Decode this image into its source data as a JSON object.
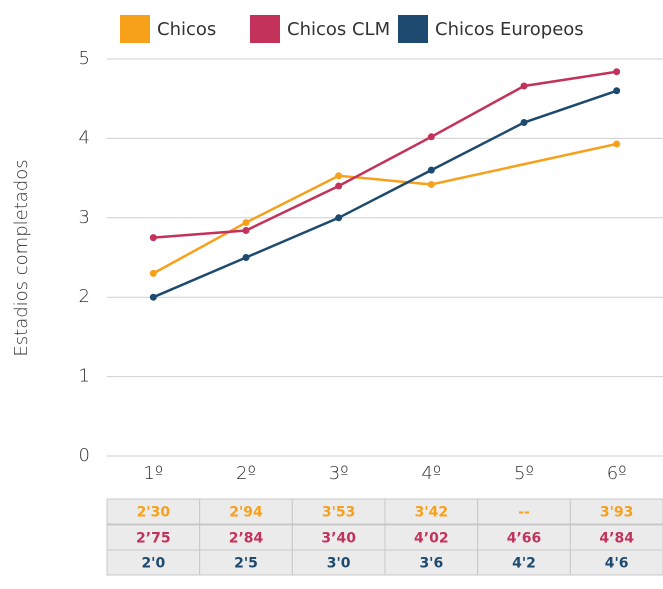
{
  "chart_data": {
    "type": "line",
    "y_label": "Estadios completados",
    "categories": [
      "1º",
      "2º",
      "3º",
      "4º",
      "5º",
      "6º"
    ],
    "series": [
      {
        "name": "Chicos",
        "color": "#f7a01a",
        "values": [
          2.3,
          2.94,
          3.53,
          3.42,
          null,
          3.93
        ],
        "value_labels": [
          "2'30",
          "2'94",
          "3'53",
          "3'42",
          "--",
          "3'93"
        ]
      },
      {
        "name": "Chicos CLM",
        "color": "#c3325a",
        "values": [
          2.75,
          2.84,
          3.4,
          4.02,
          4.66,
          4.84
        ],
        "value_labels": [
          "2’75",
          "2’84",
          "3’40",
          "4’02",
          "4’66",
          "4’84"
        ]
      },
      {
        "name": "Chicos Europeos",
        "color": "#1d4a6e",
        "values": [
          2.0,
          2.5,
          3.0,
          3.6,
          4.2,
          4.6
        ],
        "value_labels": [
          "2'0",
          "2'5",
          "3'0",
          "3'6",
          "4'2",
          "4'6"
        ]
      }
    ],
    "ylim": [
      0,
      5
    ],
    "yticks": [
      0,
      1,
      2,
      3,
      4,
      5
    ],
    "grid": true,
    "legend": "top"
  }
}
